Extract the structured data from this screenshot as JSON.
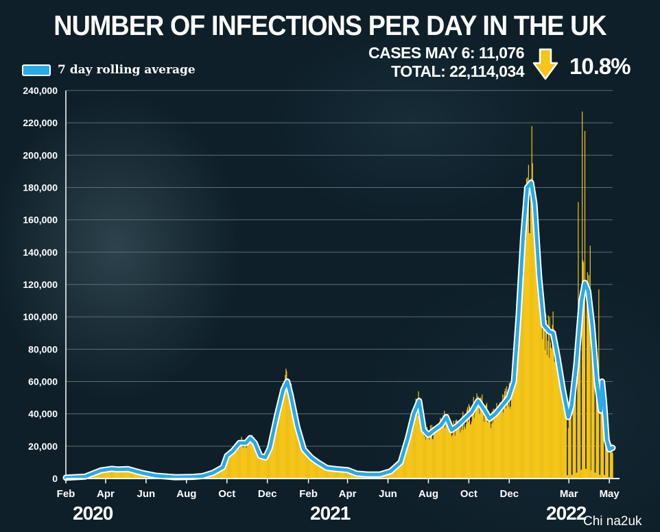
{
  "header": {
    "title": "NUMBER OF INFECTIONS PER DAY IN THE UK",
    "cases_line": "CASES MAY 6: 11,076",
    "total_line": "TOTAL: 22,114,034",
    "change_pct": "10.8%",
    "change_icon": "down-arrow-icon"
  },
  "legend": {
    "label": "7 day rolling average",
    "color": "#29a9e8"
  },
  "years": [
    "2020",
    "2021",
    "2022"
  ],
  "watermark": "Chi na2uk",
  "colors": {
    "bars": "#f5c518",
    "average": "#29a9e8",
    "background": "#0e1f29",
    "grid": "#5d6d75"
  },
  "chart_data": {
    "type": "bar",
    "title": "NUMBER OF INFECTIONS PER DAY IN THE UK",
    "ylim": [
      0,
      240000
    ],
    "yticks": [
      0,
      20000,
      40000,
      60000,
      80000,
      100000,
      120000,
      140000,
      160000,
      180000,
      200000,
      220000,
      240000
    ],
    "ytick_labels": [
      "0",
      "20,000",
      "40,000",
      "60,000",
      "80,000",
      "100,000",
      "120,000",
      "140,000",
      "160,000",
      "180,000",
      "200,000",
      "220,000",
      "240,000"
    ],
    "xlim": [
      "2020-02-01",
      "2022-05-06"
    ],
    "xticks": [
      "2020-02-01",
      "2020-04-01",
      "2020-06-01",
      "2020-08-01",
      "2020-10-01",
      "2020-12-01",
      "2021-02-01",
      "2021-04-01",
      "2021-06-01",
      "2021-08-01",
      "2021-10-01",
      "2021-12-01",
      "2022-03-01",
      "2022-05-01"
    ],
    "xtick_labels": [
      "Feb",
      "Apr",
      "Jun",
      "Aug",
      "Oct",
      "Dec",
      "Feb",
      "Apr",
      "Jun",
      "Aug",
      "Oct",
      "Dec",
      "Mar",
      "May"
    ],
    "grid": true,
    "series": [
      {
        "name": "7 day rolling average",
        "type": "line",
        "points": [
          [
            "2020-02-01",
            500
          ],
          [
            "2020-03-01",
            1200
          ],
          [
            "2020-03-25",
            5000
          ],
          [
            "2020-04-10",
            6000
          ],
          [
            "2020-04-20",
            5600
          ],
          [
            "2020-05-05",
            5800
          ],
          [
            "2020-05-25",
            3500
          ],
          [
            "2020-06-15",
            1800
          ],
          [
            "2020-07-15",
            800
          ],
          [
            "2020-08-10",
            1000
          ],
          [
            "2020-08-25",
            1500
          ],
          [
            "2020-09-10",
            3500
          ],
          [
            "2020-09-25",
            7000
          ],
          [
            "2020-10-01",
            14000
          ],
          [
            "2020-10-10",
            17000
          ],
          [
            "2020-10-20",
            22000
          ],
          [
            "2020-10-30",
            22000
          ],
          [
            "2020-11-05",
            25000
          ],
          [
            "2020-11-12",
            22000
          ],
          [
            "2020-11-20",
            14000
          ],
          [
            "2020-11-28",
            13000
          ],
          [
            "2020-12-05",
            19000
          ],
          [
            "2020-12-15",
            38000
          ],
          [
            "2020-12-25",
            55000
          ],
          [
            "2020-12-31",
            60000
          ],
          [
            "2021-01-05",
            52000
          ],
          [
            "2021-01-15",
            32000
          ],
          [
            "2021-01-25",
            18000
          ],
          [
            "2021-02-05",
            13000
          ],
          [
            "2021-02-15",
            10000
          ],
          [
            "2021-03-01",
            6500
          ],
          [
            "2021-03-15",
            5800
          ],
          [
            "2021-04-01",
            5200
          ],
          [
            "2021-04-15",
            3000
          ],
          [
            "2021-05-01",
            2500
          ],
          [
            "2021-05-20",
            2500
          ],
          [
            "2021-06-05",
            4500
          ],
          [
            "2021-06-20",
            10000
          ],
          [
            "2021-07-01",
            25000
          ],
          [
            "2021-07-10",
            40000
          ],
          [
            "2021-07-18",
            48000
          ],
          [
            "2021-07-25",
            30000
          ],
          [
            "2021-08-01",
            27000
          ],
          [
            "2021-08-10",
            30000
          ],
          [
            "2021-08-20",
            33000
          ],
          [
            "2021-08-28",
            38000
          ],
          [
            "2021-09-05",
            30000
          ],
          [
            "2021-09-15",
            33000
          ],
          [
            "2021-09-25",
            37000
          ],
          [
            "2021-10-05",
            41000
          ],
          [
            "2021-10-15",
            48000
          ],
          [
            "2021-10-25",
            42000
          ],
          [
            "2021-11-01",
            37000
          ],
          [
            "2021-11-10",
            40000
          ],
          [
            "2021-11-20",
            45000
          ],
          [
            "2021-11-30",
            50000
          ],
          [
            "2021-12-08",
            60000
          ],
          [
            "2021-12-15",
            100000
          ],
          [
            "2021-12-22",
            150000
          ],
          [
            "2021-12-28",
            180000
          ],
          [
            "2022-01-03",
            183000
          ],
          [
            "2022-01-08",
            170000
          ],
          [
            "2022-01-15",
            125000
          ],
          [
            "2022-01-22",
            95000
          ],
          [
            "2022-01-30",
            91000
          ],
          [
            "2022-02-05",
            90000
          ],
          [
            "2022-02-12",
            75000
          ],
          [
            "2022-02-20",
            55000
          ],
          [
            "2022-02-28",
            38000
          ],
          [
            "2022-03-05",
            45000
          ],
          [
            "2022-03-12",
            70000
          ],
          [
            "2022-03-20",
            110000
          ],
          [
            "2022-03-25",
            121000
          ],
          [
            "2022-03-30",
            116000
          ],
          [
            "2022-04-05",
            95000
          ],
          [
            "2022-04-12",
            60000
          ],
          [
            "2022-04-18",
            42000
          ],
          [
            "2022-04-20",
            60000
          ],
          [
            "2022-04-23",
            48000
          ],
          [
            "2022-04-27",
            24000
          ],
          [
            "2022-05-01",
            18000
          ],
          [
            "2022-05-06",
            19000
          ]
        ]
      }
    ],
    "daily_bar_peaks": [
      [
        "2020-12-29",
        68000
      ],
      [
        "2021-07-17",
        54000
      ],
      [
        "2021-10-21",
        52000
      ],
      [
        "2021-12-30",
        194000
      ],
      [
        "2022-01-04",
        218000
      ],
      [
        "2022-01-05",
        195000
      ],
      [
        "2022-01-22",
        112000
      ],
      [
        "2022-03-15",
        171000
      ],
      [
        "2022-03-21",
        227000
      ],
      [
        "2022-03-25",
        215000
      ],
      [
        "2022-04-02",
        144000
      ],
      [
        "2022-04-15",
        117000
      ]
    ]
  }
}
